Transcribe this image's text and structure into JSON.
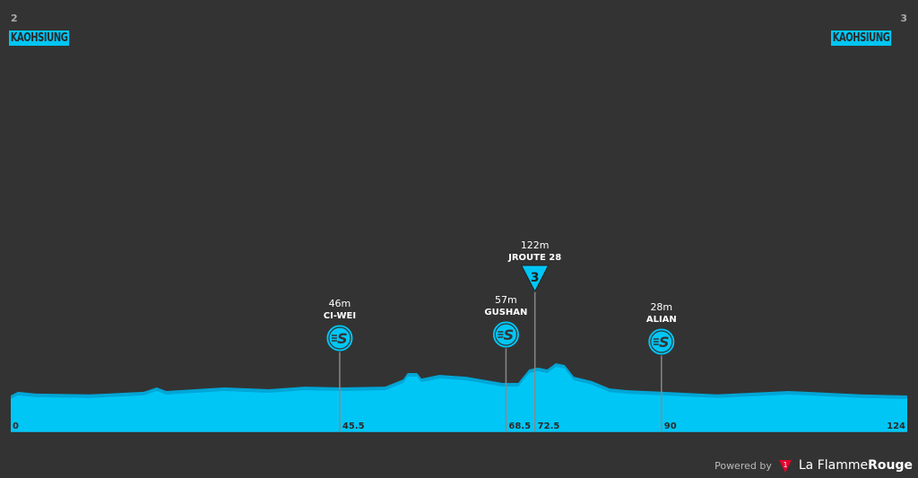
{
  "start": {
    "stage_number": "2",
    "town": "KAOHSIUNG"
  },
  "finish": {
    "stage_number": "3",
    "town": "KAOHSIUNG"
  },
  "colors": {
    "background": "#333333",
    "profile": "#00c6f6",
    "profile_shade": "#00a6d6",
    "text": "#ffffff"
  },
  "chart_data": {
    "type": "area",
    "xlabel": "",
    "ylabel": "",
    "xlim": [
      0,
      124
    ],
    "x_unit": "km",
    "y_unit": "m",
    "profile": [
      [
        0,
        15
      ],
      [
        1.0,
        29
      ],
      [
        3.5,
        22
      ],
      [
        10.9,
        19
      ],
      [
        18.4,
        29
      ],
      [
        20.2,
        46
      ],
      [
        21.5,
        32
      ],
      [
        29.5,
        46
      ],
      [
        35.7,
        39
      ],
      [
        40.7,
        49
      ],
      [
        45.6,
        46
      ],
      [
        51.8,
        49
      ],
      [
        54.3,
        77
      ],
      [
        54.9,
        101
      ],
      [
        56.2,
        101
      ],
      [
        56.8,
        80
      ],
      [
        59.3,
        94
      ],
      [
        63.0,
        87
      ],
      [
        68.0,
        63
      ],
      [
        70.2,
        63
      ],
      [
        71.7,
        115
      ],
      [
        72.9,
        122
      ],
      [
        74.2,
        115
      ],
      [
        75.4,
        139
      ],
      [
        76.6,
        132
      ],
      [
        77.9,
        87
      ],
      [
        80.4,
        70
      ],
      [
        82.8,
        42
      ],
      [
        85.3,
        35
      ],
      [
        90.3,
        29
      ],
      [
        97.7,
        19
      ],
      [
        107.6,
        32
      ],
      [
        110.1,
        29
      ],
      [
        117.6,
        19
      ],
      [
        124,
        15
      ]
    ],
    "km_labels": [
      "0",
      "45.5",
      "68.5",
      "72.5",
      "90",
      "124"
    ],
    "points": [
      {
        "km": 45.5,
        "km_label": "45.5",
        "name": "CI-WEI",
        "elevation": "46m",
        "type": "sprint",
        "icon": "sprint-icon"
      },
      {
        "km": 68.5,
        "km_label": "68.5",
        "name": "GUSHAN",
        "elevation": "57m",
        "type": "sprint",
        "icon": "sprint-icon"
      },
      {
        "km": 72.5,
        "km_label": "72.5",
        "name": "JROUTE 28",
        "elevation": "122m",
        "type": "kom",
        "category": "3",
        "icon": "kom-triangle-icon"
      },
      {
        "km": 90,
        "km_label": "90",
        "name": "ALIAN",
        "elevation": "28m",
        "type": "sprint",
        "icon": "sprint-icon"
      }
    ]
  },
  "footer": {
    "powered_by": "Powered by",
    "brand_a": "La Flamme",
    "brand_b": "Rouge"
  }
}
